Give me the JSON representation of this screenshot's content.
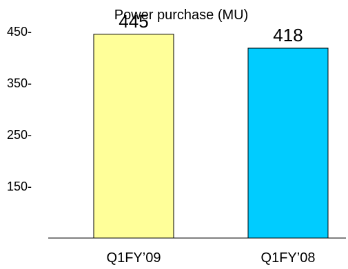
{
  "chart_data": {
    "type": "bar",
    "title": "Power purchase (MU)",
    "categories": [
      "Q1FY’09",
      "Q1FY’08"
    ],
    "values": [
      445,
      418
    ],
    "value_labels": [
      "445",
      "418"
    ],
    "bar_colors": [
      "#FFFF99",
      "#00CCFF"
    ],
    "yticks": [
      150,
      250,
      350,
      450
    ],
    "ytick_labels": [
      "150-",
      "250-",
      "350-",
      "450-"
    ],
    "ylim": [
      50,
      470
    ],
    "grid": false,
    "legend": "none"
  }
}
